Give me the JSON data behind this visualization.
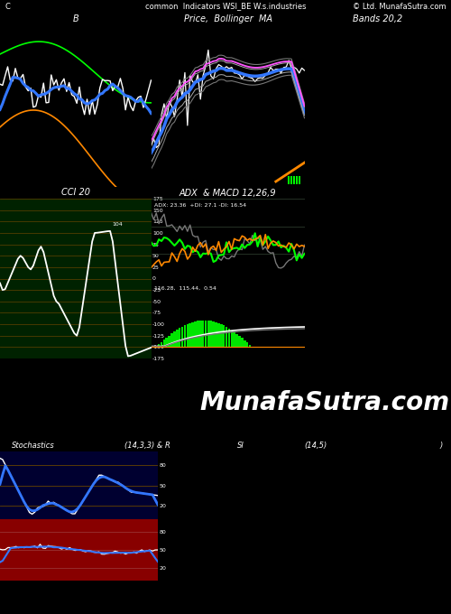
{
  "title_top": "common  Indicators WSI_BE W.s.industries",
  "title_right": "© Ltd. MunafaSutra.com",
  "title_left": "C",
  "panel1_title": "B",
  "panel2_title": "Price,  Bollinger  MA",
  "panel3_title": "Bands 20,2",
  "panel4_title": "CCI 20",
  "panel5_title": "ADX  & MACD 12,26,9",
  "panel5_subtitle": "ADX: 23.36  +DI: 27.1 -DI: 16.54",
  "panel6_subtitle": "116.28,  115.44,  0.54",
  "stoch_title": "Stochastics",
  "stoch_params": "(14,3,3) & R",
  "si_title": "SI",
  "si_params": "(14,5)",
  "si_params2": ")",
  "watermark": "MunafaSutra.com",
  "bg_black": "#000000",
  "bg_dark_blue": "#000030",
  "bg_dark_green": "#002200",
  "bg_adx": "#000820",
  "color_white": "#FFFFFF",
  "color_blue": "#3377FF",
  "color_green": "#00FF00",
  "color_orange": "#FF8800",
  "color_magenta": "#FF55FF",
  "color_gray": "#777777",
  "color_dark_gray": "#555555",
  "color_red_bg": "#880000",
  "color_grid_orange": "#664400",
  "color_grid_blue": "#223355"
}
